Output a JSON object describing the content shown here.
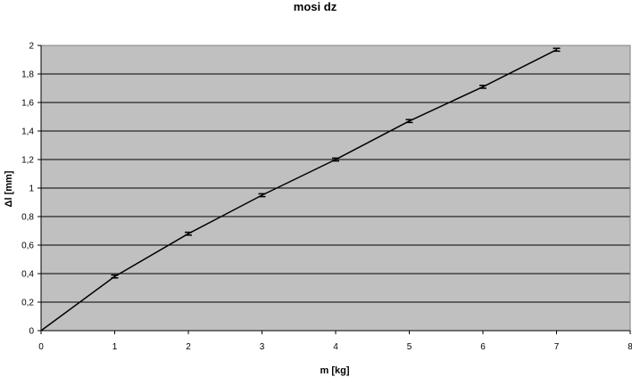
{
  "chart_data": {
    "type": "line",
    "title": "mosi  dz",
    "xlabel": "m [kg]",
    "ylabel": "Δl [mm]",
    "xlim": [
      0,
      8
    ],
    "ylim": [
      0,
      2
    ],
    "x_ticks": [
      "0",
      "1",
      "2",
      "3",
      "4",
      "5",
      "6",
      "7",
      "8"
    ],
    "y_ticks": [
      "0",
      "0,2",
      "0,4",
      "0,6",
      "0,8",
      "1",
      "1,2",
      "1,4",
      "1,6",
      "1,8",
      "2"
    ],
    "grid": true,
    "series": [
      {
        "x": [
          0,
          1,
          2,
          3,
          4,
          5,
          6,
          7
        ],
        "y": [
          0,
          0.38,
          0.68,
          0.95,
          1.2,
          1.47,
          1.71,
          1.97
        ],
        "error": [
          0,
          0.01,
          0.01,
          0.01,
          0.01,
          0.01,
          0.01,
          0.01
        ],
        "color": "#000000"
      }
    ],
    "plot_background": "#c0c0c0"
  }
}
